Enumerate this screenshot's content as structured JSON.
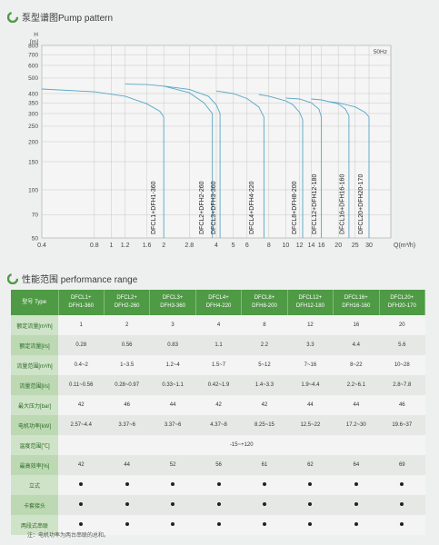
{
  "chart_section": {
    "title": "泵型谱图Pump pattern"
  },
  "perf_section": {
    "title": "性能范围 performance range"
  },
  "chart_data": {
    "type": "line",
    "title": "泵型谱图Pump pattern",
    "ylabel": "H",
    "yunit": "[m]",
    "xlabel": "Q(m³/h)",
    "scale": "log-log",
    "frequency_label": "50Hz",
    "y_ticks": [
      50,
      70,
      100,
      150,
      200,
      250,
      300,
      350,
      400,
      500,
      600,
      700,
      800
    ],
    "x_ticks": [
      0.4,
      0.8,
      1,
      1.2,
      1.6,
      2,
      2.8,
      4,
      5,
      6,
      8,
      10,
      12,
      14,
      16,
      20,
      25,
      30
    ],
    "ylim": [
      50,
      800
    ],
    "xlim": [
      0.4,
      40
    ],
    "series": [
      {
        "name": "DFCL1+DFH1-360",
        "label_x": 1.75,
        "points": [
          [
            0.4,
            427
          ],
          [
            0.8,
            410
          ],
          [
            1.2,
            385
          ],
          [
            1.6,
            345
          ],
          [
            1.9,
            310
          ],
          [
            2.0,
            285
          ]
        ]
      },
      {
        "name": "DFCL2+DFH2-260",
        "label_x": 3.3,
        "points": [
          [
            1.2,
            458
          ],
          [
            1.6,
            455
          ],
          [
            2.0,
            445
          ],
          [
            2.8,
            405
          ],
          [
            3.4,
            350
          ],
          [
            3.8,
            300
          ]
        ]
      },
      {
        "name": "DFCL3+DFH3-360",
        "label_x": 3.85,
        "points": [
          [
            2.0,
            445
          ],
          [
            2.8,
            425
          ],
          [
            3.6,
            385
          ],
          [
            4.0,
            340
          ],
          [
            4.2,
            300
          ]
        ]
      },
      {
        "name": "DFCL4+DFH4-220",
        "label_x": 6.4,
        "points": [
          [
            4.0,
            415
          ],
          [
            5.0,
            400
          ],
          [
            6.0,
            372
          ],
          [
            7.0,
            330
          ],
          [
            7.5,
            285
          ]
        ]
      },
      {
        "name": "DFCL8+DFH8-200",
        "label_x": 11.2,
        "points": [
          [
            7.0,
            395
          ],
          [
            8.0,
            385
          ],
          [
            10.0,
            360
          ],
          [
            11.0,
            340
          ],
          [
            12.0,
            305
          ],
          [
            12.5,
            275
          ]
        ]
      },
      {
        "name": "DFCL12+DFH12-180",
        "label_x": 14.6,
        "points": [
          [
            10.0,
            375
          ],
          [
            12.0,
            370
          ],
          [
            14.0,
            350
          ],
          [
            15.5,
            320
          ],
          [
            16.0,
            285
          ]
        ]
      },
      {
        "name": "DFCL16+DFH16-160",
        "label_x": 21.0,
        "points": [
          [
            14.0,
            370
          ],
          [
            16.0,
            365
          ],
          [
            20.0,
            345
          ],
          [
            22.0,
            320
          ],
          [
            23.0,
            290
          ]
        ]
      },
      {
        "name": "DFCL20+DFH20-170",
        "label_x": 27.0,
        "points": [
          [
            18.0,
            355
          ],
          [
            20.0,
            350
          ],
          [
            25.0,
            330
          ],
          [
            28.5,
            305
          ],
          [
            30.0,
            285
          ]
        ]
      }
    ]
  },
  "table": {
    "header_label": "型号 Type",
    "models": [
      [
        "DFCL1+",
        "DFH1-360"
      ],
      [
        "DFCL2+",
        "DFH2-260"
      ],
      [
        "DFCL3+",
        "DFH3-360"
      ],
      [
        "DFCL4+",
        "DFH4-220"
      ],
      [
        "DFCL8+",
        "DFH8-200"
      ],
      [
        "DFCL12+",
        "DFH12-180"
      ],
      [
        "DFCL16+",
        "DFH16-160"
      ],
      [
        "DFCL20+",
        "DFH20-170"
      ]
    ],
    "rows": [
      {
        "label": "额定流量[m³/h]",
        "values": [
          "1",
          "2",
          "3",
          "4",
          "8",
          "12",
          "16",
          "20"
        ]
      },
      {
        "label": "额定流量[l/s]",
        "values": [
          "0.28",
          "0.56",
          "0.83",
          "1.1",
          "2.2",
          "3.3",
          "4.4",
          "5.6"
        ]
      },
      {
        "label": "流量范围[m³/h]",
        "values": [
          "0.4~2",
          "1~3.5",
          "1.2~4",
          "1.5~7",
          "5~12",
          "7~16",
          "8~22",
          "10~28"
        ]
      },
      {
        "label": "流量范围[l/s]",
        "values": [
          "0.11~0.56",
          "0.28~0.97",
          "0.33~1.1",
          "0.42~1.9",
          "1.4~3.3",
          "1.9~4.4",
          "2.2~6.1",
          "2.8~7.8"
        ]
      },
      {
        "label": "最大压力[bar]",
        "values": [
          "42",
          "46",
          "44",
          "42",
          "42",
          "44",
          "44",
          "46"
        ]
      },
      {
        "label": "电机功率[kW]",
        "values": [
          "2.57~4.4",
          "3.37~6",
          "3.37~6",
          "4.37~8",
          "8.25~15",
          "12.5~22",
          "17.2~30",
          "19.6~37"
        ]
      },
      {
        "label": "温度范围[℃]",
        "merged": "-15~+120"
      },
      {
        "label": "最高效率[%]",
        "values": [
          "42",
          "44",
          "52",
          "56",
          "61",
          "62",
          "64",
          "69"
        ]
      },
      {
        "label": "立式",
        "dots": true
      },
      {
        "label": "卡套接头",
        "dots": true
      },
      {
        "label": "两段式串联",
        "dots": true
      }
    ]
  },
  "note": "注：电机功率为两台串联的总和。",
  "colors": {
    "accent": "#4f9a45",
    "curve": "#5aa6c6"
  }
}
